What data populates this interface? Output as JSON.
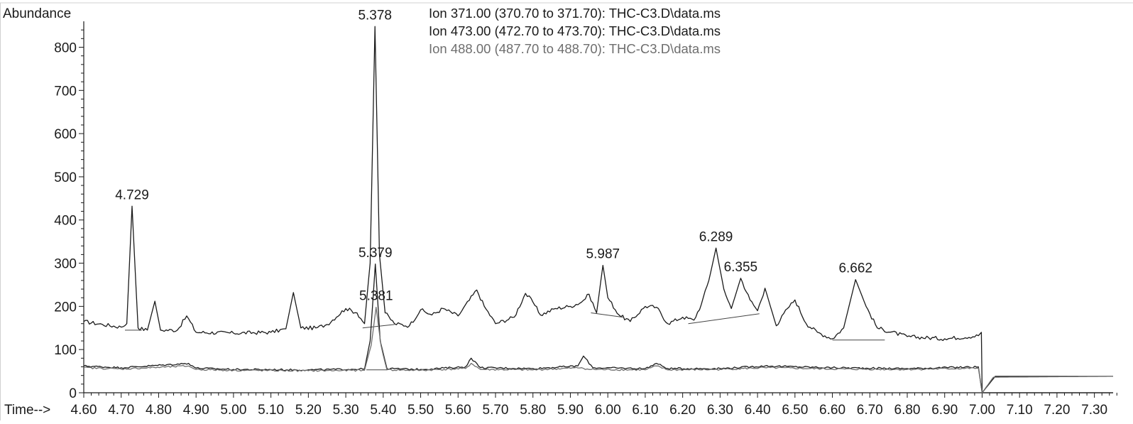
{
  "chart_data": {
    "type": "line",
    "ylabel": "Abundance",
    "xlabel": "Time-->",
    "xlim": [
      4.6,
      7.35
    ],
    "ylim": [
      0,
      860
    ],
    "x_ticks": [
      "4.60",
      "4.70",
      "4.80",
      "4.90",
      "5.00",
      "5.10",
      "5.20",
      "5.30",
      "5.40",
      "5.50",
      "5.60",
      "5.70",
      "5.80",
      "5.90",
      "6.00",
      "6.10",
      "6.20",
      "6.30",
      "6.40",
      "6.50",
      "6.60",
      "6.70",
      "6.80",
      "6.90",
      "7.00",
      "7.10",
      "7.20",
      "7.30"
    ],
    "y_ticks": [
      "0",
      "100",
      "200",
      "300",
      "400",
      "500",
      "600",
      "700",
      "800"
    ],
    "legend": [
      {
        "text": "Ion 371.00 (370.70 to 371.70): THC-C3.D\\data.ms",
        "color": "#1a1a1a"
      },
      {
        "text": "Ion 473.00 (472.70 to 473.70): THC-C3.D\\data.ms",
        "color": "#1a1a1a"
      },
      {
        "text": "Ion 488.00 (487.70 to 488.70): THC-C3.D\\data.ms",
        "color": "#6e6e6e"
      }
    ],
    "series": [
      {
        "color": "#1a1a1a",
        "points": [
          [
            4.6,
            165
          ],
          [
            4.65,
            158
          ],
          [
            4.7,
            152
          ],
          [
            4.715,
            160
          ],
          [
            4.729,
            432
          ],
          [
            4.745,
            150
          ],
          [
            4.77,
            145
          ],
          [
            4.79,
            212
          ],
          [
            4.805,
            145
          ],
          [
            4.85,
            145
          ],
          [
            4.875,
            178
          ],
          [
            4.9,
            140
          ],
          [
            5.0,
            138
          ],
          [
            5.1,
            140
          ],
          [
            5.14,
            148
          ],
          [
            5.16,
            232
          ],
          [
            5.18,
            150
          ],
          [
            5.22,
            150
          ],
          [
            5.25,
            158
          ],
          [
            5.3,
            195
          ],
          [
            5.33,
            185
          ],
          [
            5.35,
            160
          ],
          [
            5.365,
            300
          ],
          [
            5.378,
            848
          ],
          [
            5.39,
            320
          ],
          [
            5.405,
            185
          ],
          [
            5.43,
            160
          ],
          [
            5.47,
            155
          ],
          [
            5.5,
            192
          ],
          [
            5.53,
            180
          ],
          [
            5.56,
            195
          ],
          [
            5.6,
            178
          ],
          [
            5.65,
            238
          ],
          [
            5.67,
            200
          ],
          [
            5.7,
            160
          ],
          [
            5.75,
            175
          ],
          [
            5.78,
            230
          ],
          [
            5.8,
            210
          ],
          [
            5.82,
            180
          ],
          [
            5.86,
            195
          ],
          [
            5.9,
            200
          ],
          [
            5.93,
            210
          ],
          [
            5.95,
            228
          ],
          [
            5.97,
            185
          ],
          [
            5.987,
            295
          ],
          [
            6.0,
            220
          ],
          [
            6.03,
            180
          ],
          [
            6.06,
            165
          ],
          [
            6.1,
            200
          ],
          [
            6.13,
            198
          ],
          [
            6.16,
            160
          ],
          [
            6.2,
            175
          ],
          [
            6.23,
            168
          ],
          [
            6.25,
            205
          ],
          [
            6.27,
            260
          ],
          [
            6.289,
            335
          ],
          [
            6.31,
            240
          ],
          [
            6.33,
            195
          ],
          [
            6.355,
            265
          ],
          [
            6.38,
            215
          ],
          [
            6.4,
            190
          ],
          [
            6.42,
            242
          ],
          [
            6.45,
            155
          ],
          [
            6.48,
            195
          ],
          [
            6.5,
            215
          ],
          [
            6.53,
            160
          ],
          [
            6.56,
            140
          ],
          [
            6.6,
            125
          ],
          [
            6.63,
            150
          ],
          [
            6.662,
            262
          ],
          [
            6.69,
            200
          ],
          [
            6.72,
            150
          ],
          [
            6.8,
            130
          ],
          [
            6.9,
            125
          ],
          [
            6.99,
            132
          ],
          [
            6.998,
            140
          ],
          [
            7.0,
            0
          ],
          [
            7.35,
            0
          ]
        ],
        "baselines": [
          [
            [
              4.71,
              145
            ],
            [
              4.755,
              145
            ]
          ],
          [
            [
              5.345,
              150
            ],
            [
              5.43,
              158
            ]
          ],
          [
            [
              5.955,
              185
            ],
            [
              6.04,
              175
            ]
          ],
          [
            [
              6.215,
              160
            ],
            [
              6.405,
              183
            ]
          ],
          [
            [
              6.6,
              122
            ],
            [
              6.74,
              122
            ]
          ]
        ]
      },
      {
        "color": "#1a1a1a",
        "points": [
          [
            4.6,
            62
          ],
          [
            4.7,
            58
          ],
          [
            4.88,
            68
          ],
          [
            4.9,
            57
          ],
          [
            5.0,
            54
          ],
          [
            5.2,
            53
          ],
          [
            5.35,
            55
          ],
          [
            5.365,
            120
          ],
          [
            5.379,
            298
          ],
          [
            5.392,
            120
          ],
          [
            5.41,
            56
          ],
          [
            5.5,
            54
          ],
          [
            5.62,
            60
          ],
          [
            5.635,
            80
          ],
          [
            5.66,
            58
          ],
          [
            5.8,
            56
          ],
          [
            5.92,
            62
          ],
          [
            5.935,
            85
          ],
          [
            5.96,
            58
          ],
          [
            6.1,
            56
          ],
          [
            6.13,
            68
          ],
          [
            6.16,
            56
          ],
          [
            6.3,
            56
          ],
          [
            6.42,
            62
          ],
          [
            6.6,
            58
          ],
          [
            6.8,
            56
          ],
          [
            6.99,
            60
          ],
          [
            7.0,
            0
          ],
          [
            7.035,
            38
          ],
          [
            7.35,
            38
          ]
        ],
        "baselines": [
          [
            [
              5.355,
              53
            ],
            [
              5.41,
              53
            ]
          ]
        ]
      },
      {
        "color": "#6e6e6e",
        "points": [
          [
            4.6,
            58
          ],
          [
            4.7,
            55
          ],
          [
            4.88,
            62
          ],
          [
            4.9,
            54
          ],
          [
            5.0,
            52
          ],
          [
            5.2,
            51
          ],
          [
            5.35,
            52
          ],
          [
            5.368,
            110
          ],
          [
            5.381,
            198
          ],
          [
            5.394,
            110
          ],
          [
            5.41,
            53
          ],
          [
            5.5,
            52
          ],
          [
            5.62,
            56
          ],
          [
            5.635,
            68
          ],
          [
            5.66,
            54
          ],
          [
            5.8,
            53
          ],
          [
            5.93,
            58
          ],
          [
            5.95,
            54
          ],
          [
            6.1,
            53
          ],
          [
            6.13,
            62
          ],
          [
            6.16,
            53
          ],
          [
            6.3,
            54
          ],
          [
            6.42,
            58
          ],
          [
            6.6,
            55
          ],
          [
            6.8,
            54
          ],
          [
            6.99,
            57
          ],
          [
            7.0,
            0
          ],
          [
            7.03,
            36
          ],
          [
            7.35,
            38
          ]
        ],
        "baselines": []
      }
    ],
    "peak_labels": [
      {
        "text": "4.729",
        "x": 4.729,
        "y": 432
      },
      {
        "text": "5.378",
        "x": 5.378,
        "y": 848
      },
      {
        "text": "5.379",
        "x": 5.379,
        "y": 298
      },
      {
        "text": "5.381",
        "x": 5.381,
        "y": 198
      },
      {
        "text": "5.987",
        "x": 5.987,
        "y": 295
      },
      {
        "text": "6.289",
        "x": 6.289,
        "y": 335
      },
      {
        "text": "6.355",
        "x": 6.355,
        "y": 265
      },
      {
        "text": "6.662",
        "x": 6.662,
        "y": 262
      }
    ]
  }
}
